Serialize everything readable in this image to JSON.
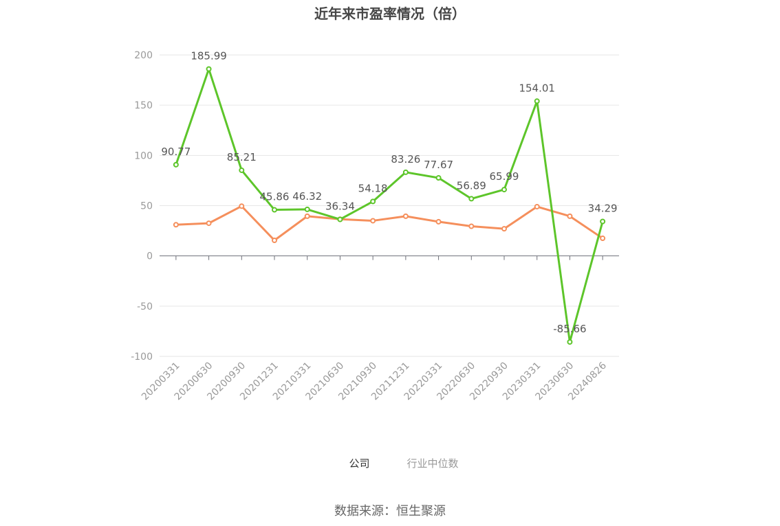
{
  "chart_data": {
    "type": "line",
    "title": "近年来市盈率情况（倍）",
    "categories": [
      "20200331",
      "20200630",
      "20200930",
      "20201231",
      "20210331",
      "20210630",
      "20210930",
      "20211231",
      "20220331",
      "20220630",
      "20220930",
      "20230331",
      "20230630",
      "20240826"
    ],
    "series": [
      {
        "name": "公司",
        "color": "#5dc52a",
        "values": [
          90.77,
          185.99,
          85.21,
          45.86,
          46.32,
          36.34,
          54.18,
          83.26,
          77.67,
          56.89,
          65.99,
          154.01,
          -85.66,
          34.29
        ],
        "labels": [
          "90.77",
          "185.99",
          "85.21",
          "45.86",
          "46.32",
          "36.34",
          "54.18",
          "83.26",
          "77.67",
          "56.89",
          "65.99",
          "154.01",
          "-85.66",
          "34.29"
        ]
      },
      {
        "name": "行业中位数",
        "color": "#f58f5c",
        "values": [
          31,
          32.5,
          49.5,
          15.5,
          39.5,
          36.5,
          35,
          39.5,
          34,
          29.5,
          27,
          49,
          39.5,
          17.5
        ]
      }
    ],
    "ylim": [
      -100,
      200
    ],
    "yticks": [
      -100,
      -50,
      0,
      50,
      100,
      150,
      200
    ],
    "grid": true,
    "legend_position": "bottom"
  },
  "source": "数据来源：恒生聚源"
}
